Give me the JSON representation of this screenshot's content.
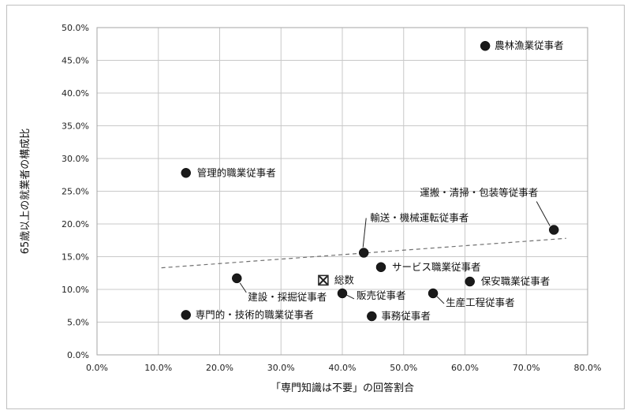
{
  "chart_data": {
    "type": "scatter",
    "xlabel": "「専門知識は不要」の回答割合",
    "ylabel": "65歳以上の就業者の構成比",
    "xlim": [
      0,
      80
    ],
    "ylim": [
      0,
      50
    ],
    "x_ticks": [
      "0.0%",
      "10.0%",
      "20.0%",
      "30.0%",
      "40.0%",
      "50.0%",
      "60.0%",
      "70.0%",
      "80.0%"
    ],
    "y_ticks": [
      "0.0%",
      "5.0%",
      "10.0%",
      "15.0%",
      "20.0%",
      "25.0%",
      "30.0%",
      "35.0%",
      "40.0%",
      "45.0%",
      "50.0%"
    ],
    "grid": true,
    "trendline": {
      "style": "dashed",
      "x": [
        10.5,
        76.5
      ],
      "y": [
        13.3,
        17.8
      ]
    },
    "points": [
      {
        "label": "農林漁業従事者",
        "x": 63.3,
        "y": 47.2
      },
      {
        "label": "管理的職業従事者",
        "x": 14.5,
        "y": 27.8
      },
      {
        "label": "運搬・清掃・包装等従事者",
        "x": 74.5,
        "y": 19.1
      },
      {
        "label": "輸送・機械運転従事者",
        "x": 43.5,
        "y": 15.6
      },
      {
        "label": "サービス職業従事者",
        "x": 46.3,
        "y": 13.4
      },
      {
        "label": "建設・採掘従事者",
        "x": 22.8,
        "y": 11.7
      },
      {
        "label": "保安職業従事者",
        "x": 60.8,
        "y": 11.2
      },
      {
        "label": "総数",
        "x": 36.9,
        "y": 11.4,
        "marker": "boxed-x"
      },
      {
        "label": "販売従事者",
        "x": 40.0,
        "y": 9.4
      },
      {
        "label": "生産工程従事者",
        "x": 54.8,
        "y": 9.4
      },
      {
        "label": "専門的・技術的職業従事者",
        "x": 14.5,
        "y": 6.1
      },
      {
        "label": "事務従事者",
        "x": 44.8,
        "y": 5.9
      }
    ]
  }
}
